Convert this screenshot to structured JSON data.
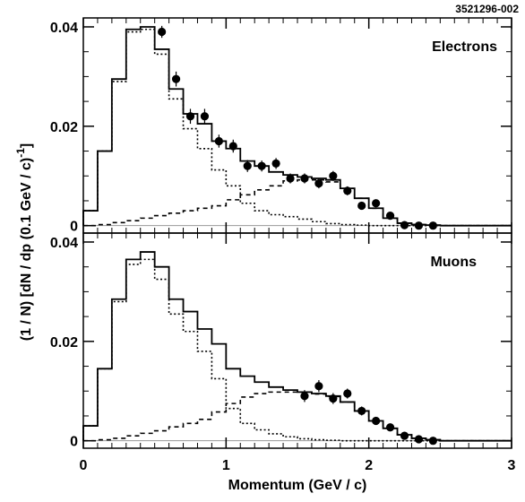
{
  "figure_id": "3521296-002",
  "chart_data": {
    "type": "line",
    "figure_id": "3521296-002",
    "xlabel": "Momentum (GeV / c)",
    "ylabel": "(1 / N) [dN / dp (0.1 GeV / c)",
    "ylabel_exponent": "-1",
    "ylabel_close": "]",
    "x_ticks": [
      0,
      1,
      2,
      3
    ],
    "x_tick_labels": [
      "0",
      "1",
      "2",
      "3"
    ],
    "xlim": [
      0,
      3
    ],
    "grid": false,
    "panels": [
      {
        "title": "Electrons",
        "ylim": [
          -0.0015,
          0.0418
        ],
        "y_ticks": [
          0,
          0.02,
          0.04
        ],
        "y_tick_labels": [
          "0",
          "0.02",
          "0.04"
        ],
        "bin_edges": [
          0.0,
          0.1,
          0.2,
          0.3,
          0.4,
          0.5,
          0.6,
          0.7,
          0.8,
          0.9,
          1.0,
          1.1,
          1.2,
          1.3,
          1.4,
          1.5,
          1.6,
          1.7,
          1.8,
          1.9,
          2.0,
          2.1,
          2.2,
          2.3,
          2.4,
          2.5,
          2.6,
          2.7,
          2.8,
          2.9,
          3.0
        ],
        "series": [
          {
            "style": "solid",
            "values": [
              0.003,
              0.015,
              0.0295,
              0.0395,
              0.04,
              0.0355,
              0.0275,
              0.0225,
              0.0205,
              0.017,
              0.0155,
              0.013,
              0.012,
              0.0108,
              0.0102,
              0.0098,
              0.0095,
              0.0092,
              0.0075,
              0.0055,
              0.0035,
              0.0015,
              0.0005,
              0.0002,
              0.0001,
              0.0,
              0.0,
              0.0,
              0.0,
              0.0
            ]
          },
          {
            "style": "dotted",
            "values": [
              0.003,
              0.015,
              0.029,
              0.039,
              0.0395,
              0.0345,
              0.0255,
              0.0195,
              0.0155,
              0.0112,
              0.008,
              0.0045,
              0.003,
              0.0022,
              0.0018,
              0.0013,
              0.0008,
              0.0004,
              0.0002,
              0.0001,
              0.0,
              0.0,
              0.0,
              0.0,
              0.0,
              0.0,
              0.0,
              0.0,
              0.0,
              0.0
            ]
          },
          {
            "style": "dashed",
            "values": [
              0.0,
              0.0002,
              0.0006,
              0.001,
              0.0015,
              0.002,
              0.0025,
              0.003,
              0.0035,
              0.004,
              0.0052,
              0.0062,
              0.0072,
              0.008,
              0.009,
              0.0092,
              0.0092,
              0.0088,
              0.0075,
              0.0055,
              0.0035,
              0.0015,
              0.0005,
              0.0002,
              0.0001,
              0.0,
              0.0,
              0.0,
              0.0,
              0.0
            ]
          }
        ],
        "points": {
          "x": [
            0.55,
            0.65,
            0.75,
            0.85,
            0.95,
            1.05,
            1.15,
            1.25,
            1.35,
            1.45,
            1.55,
            1.65,
            1.75,
            1.85,
            1.95,
            2.05,
            2.15,
            2.25,
            2.35,
            2.45
          ],
          "y": [
            0.039,
            0.0295,
            0.022,
            0.022,
            0.017,
            0.016,
            0.012,
            0.012,
            0.0125,
            0.0095,
            0.0095,
            0.0085,
            0.01,
            0.007,
            0.004,
            0.0045,
            0.002,
            0.0001,
            0.0,
            0.0
          ],
          "err": [
            0.0012,
            0.0015,
            0.0015,
            0.0015,
            0.0013,
            0.0013,
            0.0012,
            0.0011,
            0.0011,
            0.001,
            0.001,
            0.001,
            0.001,
            0.0009,
            0.0008,
            0.0007,
            0.0006,
            0.0004,
            0.0003,
            0.0002
          ]
        }
      },
      {
        "title": "Muons",
        "ylim": [
          -0.0015,
          0.0418
        ],
        "y_ticks": [
          0,
          0.02,
          0.04
        ],
        "y_tick_labels": [
          "0",
          "0.02",
          "0.04"
        ],
        "bin_edges": [
          0.0,
          0.1,
          0.2,
          0.3,
          0.4,
          0.5,
          0.6,
          0.7,
          0.8,
          0.9,
          1.0,
          1.1,
          1.2,
          1.3,
          1.4,
          1.5,
          1.6,
          1.7,
          1.8,
          1.9,
          2.0,
          2.1,
          2.2,
          2.3,
          2.4,
          2.5,
          2.6,
          2.7,
          2.8,
          2.9,
          3.0
        ],
        "series": [
          {
            "style": "solid",
            "values": [
              0.003,
              0.0145,
              0.0285,
              0.0365,
              0.038,
              0.035,
              0.0285,
              0.026,
              0.0225,
              0.0195,
              0.0145,
              0.013,
              0.0118,
              0.0108,
              0.0102,
              0.0098,
              0.0095,
              0.009,
              0.0078,
              0.006,
              0.004,
              0.0025,
              0.0012,
              0.0005,
              0.0002,
              0.0,
              0.0,
              0.0,
              0.0,
              0.0
            ]
          },
          {
            "style": "dotted",
            "values": [
              0.003,
              0.0145,
              0.028,
              0.0355,
              0.0365,
              0.0325,
              0.0255,
              0.022,
              0.018,
              0.0125,
              0.0065,
              0.0035,
              0.0022,
              0.0014,
              0.0008,
              0.0004,
              0.0002,
              0.0001,
              0.0,
              0.0,
              0.0,
              0.0,
              0.0,
              0.0,
              0.0,
              0.0,
              0.0,
              0.0,
              0.0,
              0.0
            ]
          },
          {
            "style": "dashed",
            "values": [
              0.0,
              0.0002,
              0.0005,
              0.001,
              0.0015,
              0.002,
              0.0028,
              0.0035,
              0.0043,
              0.0058,
              0.0075,
              0.0088,
              0.0095,
              0.0098,
              0.0098,
              0.0098,
              0.0094,
              0.0089,
              0.0078,
              0.006,
              0.004,
              0.0025,
              0.0012,
              0.0005,
              0.0002,
              0.0,
              0.0,
              0.0,
              0.0,
              0.0
            ]
          }
        ],
        "points": {
          "x": [
            1.55,
            1.65,
            1.75,
            1.85,
            1.95,
            2.05,
            2.15,
            2.25,
            2.35,
            2.45
          ],
          "y": [
            0.009,
            0.011,
            0.0085,
            0.0095,
            0.006,
            0.004,
            0.0027,
            0.001,
            0.0003,
            0.0
          ],
          "err": [
            0.0012,
            0.0012,
            0.0011,
            0.001,
            0.0009,
            0.0008,
            0.0007,
            0.0005,
            0.0004,
            0.0003
          ]
        }
      }
    ]
  }
}
